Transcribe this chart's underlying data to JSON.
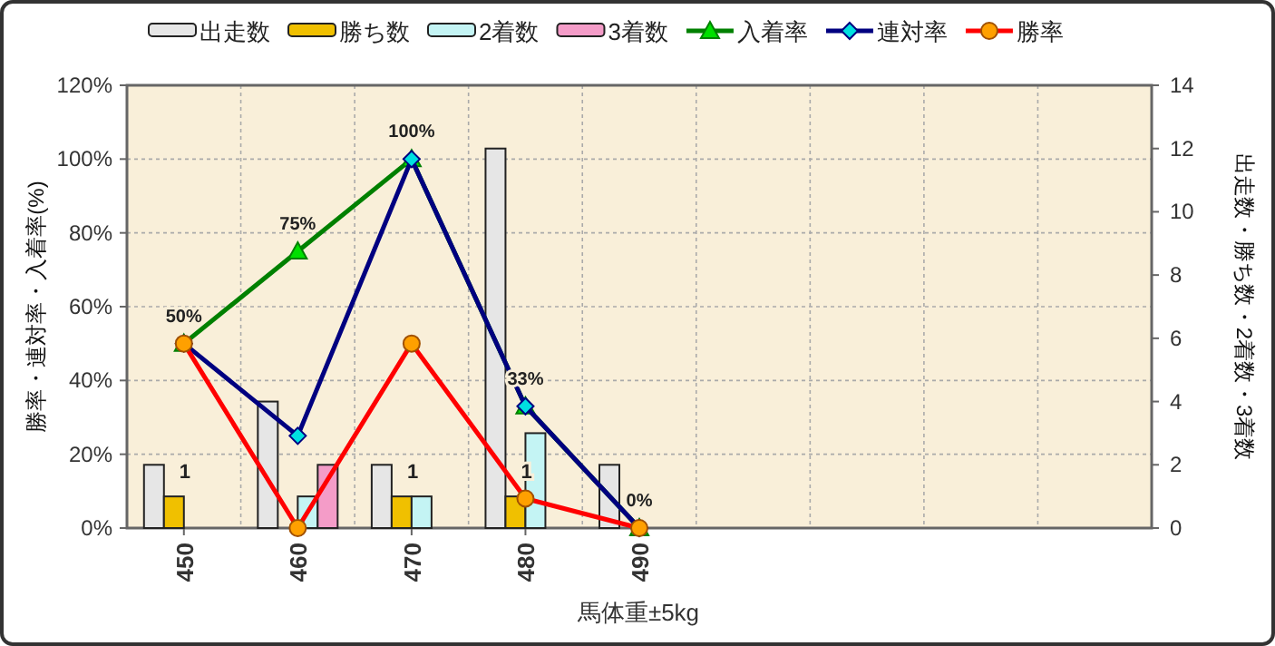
{
  "chart_data": {
    "type": "bar",
    "xlabel": "馬体重±5kg",
    "ylabel": "勝率・連対率・入着率(%)",
    "y2label": "出走数・勝ち数・2着数・3着数",
    "categories": [
      "450",
      "460",
      "470",
      "480",
      "490",
      null,
      null,
      null,
      null
    ],
    "ylim": [
      0,
      120
    ],
    "yticks": [
      {
        "value": 0,
        "label": "0%"
      },
      {
        "value": 20,
        "label": "20%"
      },
      {
        "value": 40,
        "label": "40%"
      },
      {
        "value": 60,
        "label": "60%"
      },
      {
        "value": 80,
        "label": "80%"
      },
      {
        "value": 100,
        "label": "100%"
      },
      {
        "value": 120,
        "label": "120%"
      }
    ],
    "y2lim": [
      0,
      14
    ],
    "y2ticks": [
      0,
      2,
      4,
      6,
      8,
      10,
      12,
      14
    ],
    "grid": true,
    "legend": "top",
    "series": [
      {
        "name": "出走数",
        "axis": "y2",
        "color": "#e6e6e6",
        "values": [
          2,
          4,
          2,
          12,
          2,
          null,
          null,
          null,
          null
        ]
      },
      {
        "name": "勝ち数",
        "axis": "y2",
        "color": "#f0c000",
        "values": [
          1,
          0,
          1,
          1,
          0,
          null,
          null,
          null,
          null
        ],
        "value_labels": [
          "1",
          null,
          "1",
          "1",
          null,
          null,
          null,
          null,
          null
        ]
      },
      {
        "name": "2着数",
        "axis": "y2",
        "color": "#c4f4f4",
        "values": [
          0,
          1,
          1,
          3,
          0,
          null,
          null,
          null,
          null
        ]
      },
      {
        "name": "3着数",
        "axis": "y2",
        "color": "#f49cc8",
        "values": [
          0,
          2,
          0,
          0,
          0,
          null,
          null,
          null,
          null
        ]
      },
      {
        "name": "入着率",
        "type": "line",
        "color": "#008000",
        "marker": "triangle",
        "values": [
          50,
          75,
          100,
          33,
          0,
          null,
          null,
          null,
          null
        ],
        "value_labels": [
          "50%",
          "75%",
          "100%",
          "33%",
          "0%",
          null,
          null,
          null,
          null
        ]
      },
      {
        "name": "連対率",
        "type": "line",
        "color": "#000080",
        "marker": "diamond",
        "values": [
          50,
          25,
          100,
          33,
          0,
          null,
          null,
          null,
          null
        ]
      },
      {
        "name": "勝率",
        "type": "line",
        "color": "#ff0000",
        "marker": "circle",
        "values": [
          50,
          0,
          50,
          8,
          0,
          null,
          null,
          null,
          null
        ]
      }
    ]
  }
}
